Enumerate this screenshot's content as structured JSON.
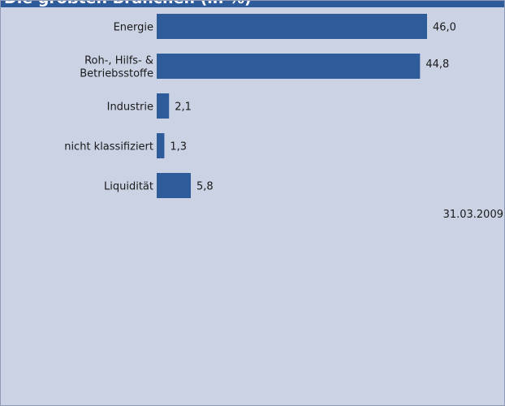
{
  "header": {
    "title": "Die größten Branchen (in %)"
  },
  "footer": {
    "date": "31.03.2009"
  },
  "colors": {
    "bar": "#2e5b9a",
    "background": "#cbd2e4",
    "header": "#2e5b9a"
  },
  "chart_data": {
    "type": "bar",
    "orientation": "horizontal",
    "categories": [
      [
        "Energie"
      ],
      [
        "Roh-, Hilfs- &",
        "Betriebsstoffe"
      ],
      [
        "Industrie"
      ],
      [
        "nicht klassifiziert"
      ],
      [
        "Liquidität"
      ]
    ],
    "values": [
      46.0,
      44.8,
      2.1,
      1.3,
      5.8
    ],
    "value_labels": [
      "46,0",
      "44,8",
      "2,1",
      "1,3",
      "5,8"
    ],
    "title": "Die größten Branchen (in %)",
    "xlim": [
      0,
      46.0
    ],
    "grid": false,
    "legend": "none"
  }
}
